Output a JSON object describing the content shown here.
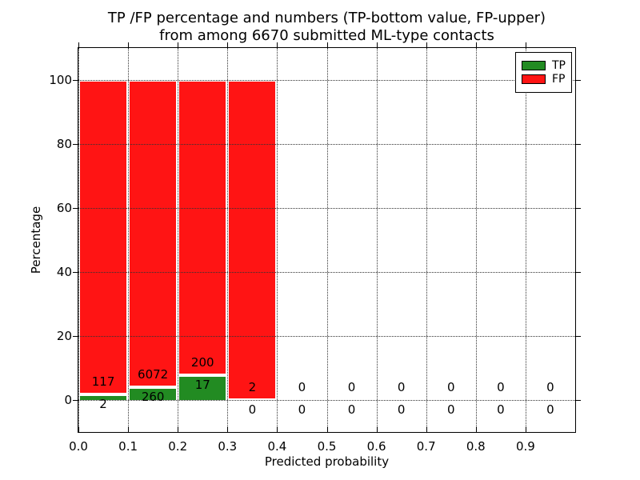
{
  "figure": {
    "title_line1": "TP /FP percentage and numbers (TP-bottom value, FP-upper)",
    "title_line2": "from among 6670 submitted ML-type contacts"
  },
  "chart_data": {
    "type": "bar",
    "stacked": true,
    "normalized_to_percent": true,
    "title": "TP /FP percentage and numbers (TP-bottom value, FP-upper) from among 6670 submitted ML-type contacts",
    "total_contacts": 6670,
    "xlabel": "Predicted probability",
    "ylabel": "Percentage",
    "xlim": [
      0.0,
      1.0
    ],
    "ylim": [
      -10,
      110
    ],
    "grid": "dotted",
    "legend": {
      "position": "upper right",
      "entries": [
        {
          "label": "TP",
          "color": "#228b22"
        },
        {
          "label": "FP",
          "color": "#ff1414"
        }
      ]
    },
    "xticks": [
      {
        "value": 0.0,
        "label": "0.0"
      },
      {
        "value": 0.1,
        "label": "0.1"
      },
      {
        "value": 0.2,
        "label": "0.2"
      },
      {
        "value": 0.3,
        "label": "0.3"
      },
      {
        "value": 0.4,
        "label": "0.4"
      },
      {
        "value": 0.5,
        "label": "0.5"
      },
      {
        "value": 0.6,
        "label": "0.6"
      },
      {
        "value": 0.7,
        "label": "0.7"
      },
      {
        "value": 0.8,
        "label": "0.8"
      },
      {
        "value": 0.9,
        "label": "0.9"
      }
    ],
    "yticks": [
      {
        "value": 0,
        "label": "0"
      },
      {
        "value": 20,
        "label": "20"
      },
      {
        "value": 40,
        "label": "40"
      },
      {
        "value": 60,
        "label": "60"
      },
      {
        "value": 80,
        "label": "80"
      },
      {
        "value": 100,
        "label": "100"
      }
    ],
    "bins": [
      {
        "x0": 0.0,
        "x1": 0.1,
        "tp": 2,
        "fp": 117
      },
      {
        "x0": 0.1,
        "x1": 0.2,
        "tp": 260,
        "fp": 6072
      },
      {
        "x0": 0.2,
        "x1": 0.3,
        "tp": 17,
        "fp": 200
      },
      {
        "x0": 0.3,
        "x1": 0.4,
        "tp": 0,
        "fp": 2
      },
      {
        "x0": 0.4,
        "x1": 0.5,
        "tp": 0,
        "fp": 0
      },
      {
        "x0": 0.5,
        "x1": 0.6,
        "tp": 0,
        "fp": 0
      },
      {
        "x0": 0.6,
        "x1": 0.7,
        "tp": 0,
        "fp": 0
      },
      {
        "x0": 0.7,
        "x1": 0.8,
        "tp": 0,
        "fp": 0
      },
      {
        "x0": 0.8,
        "x1": 0.9,
        "tp": 0,
        "fp": 0
      },
      {
        "x0": 0.9,
        "x1": 1.0,
        "tp": 0,
        "fp": 0
      }
    ]
  }
}
